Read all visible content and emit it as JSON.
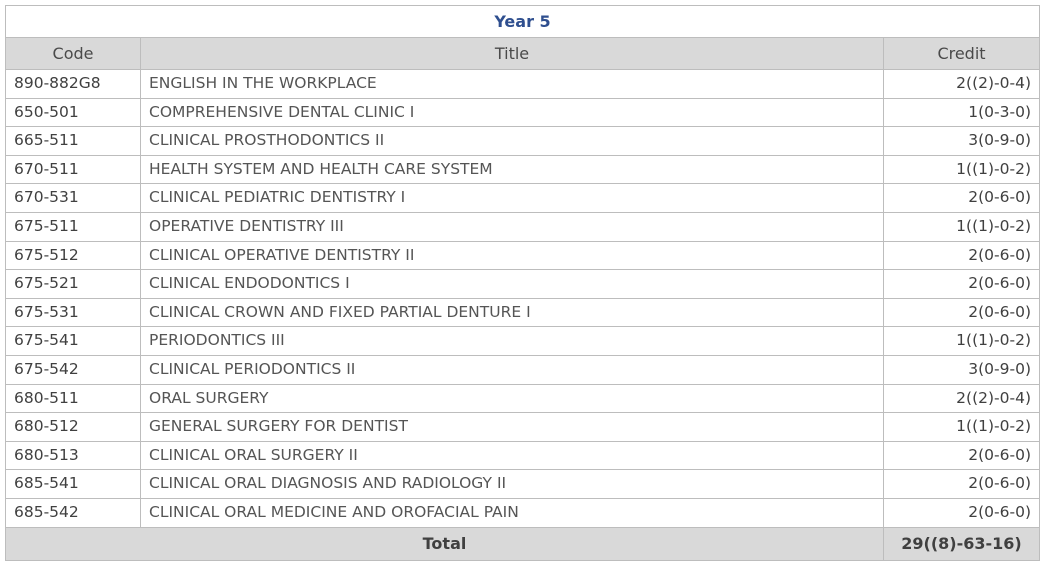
{
  "table": {
    "title": "Year 5",
    "headers": {
      "code": "Code",
      "title": "Title",
      "credit": "Credit"
    },
    "rows": [
      {
        "code": "890-882G8",
        "title": "ENGLISH IN THE WORKPLACE",
        "credit": "2((2)-0-4)"
      },
      {
        "code": "650-501",
        "title": "COMPREHENSIVE DENTAL CLINIC I",
        "credit": "1(0-3-0)"
      },
      {
        "code": "665-511",
        "title": "CLINICAL PROSTHODONTICS II",
        "credit": "3(0-9-0)"
      },
      {
        "code": "670-511",
        "title": "HEALTH SYSTEM AND HEALTH CARE SYSTEM",
        "credit": "1((1)-0-2)"
      },
      {
        "code": "670-531",
        "title": "CLINICAL PEDIATRIC DENTISTRY I",
        "credit": "2(0-6-0)"
      },
      {
        "code": "675-511",
        "title": "OPERATIVE DENTISTRY III",
        "credit": "1((1)-0-2)"
      },
      {
        "code": "675-512",
        "title": "CLINICAL OPERATIVE DENTISTRY II",
        "credit": "2(0-6-0)"
      },
      {
        "code": "675-521",
        "title": "CLINICAL ENDODONTICS I",
        "credit": "2(0-6-0)"
      },
      {
        "code": "675-531",
        "title": "CLINICAL CROWN AND FIXED PARTIAL DENTURE I",
        "credit": "2(0-6-0)"
      },
      {
        "code": "675-541",
        "title": "PERIODONTICS III",
        "credit": "1((1)-0-2)"
      },
      {
        "code": "675-542",
        "title": "CLINICAL PERIODONTICS II",
        "credit": "3(0-9-0)"
      },
      {
        "code": "680-511",
        "title": "ORAL SURGERY",
        "credit": "2((2)-0-4)"
      },
      {
        "code": "680-512",
        "title": "GENERAL SURGERY FOR DENTIST",
        "credit": "1((1)-0-2)"
      },
      {
        "code": "680-513",
        "title": "CLINICAL ORAL SURGERY II",
        "credit": "2(0-6-0)"
      },
      {
        "code": "685-541",
        "title": "CLINICAL ORAL DIAGNOSIS AND RADIOLOGY II",
        "credit": "2(0-6-0)"
      },
      {
        "code": "685-542",
        "title": "CLINICAL ORAL MEDICINE AND OROFACIAL PAIN",
        "credit": "2(0-6-0)"
      }
    ],
    "total": {
      "label": "Total",
      "credit": "29((8)-63-16)"
    }
  },
  "colors": {
    "title_text": "#2f4f8f",
    "header_bg": "#d9d9d9",
    "border": "#bdbdbd"
  }
}
